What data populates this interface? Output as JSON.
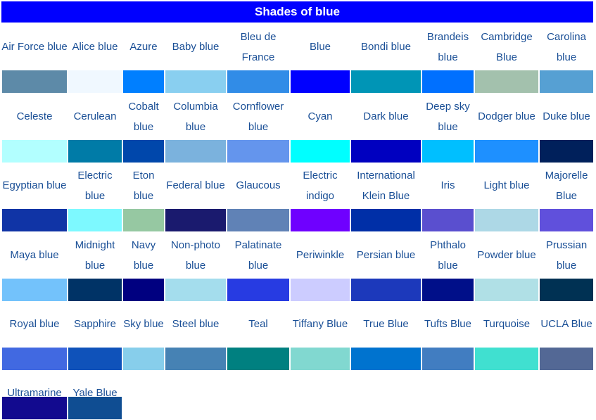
{
  "title": "Shades of blue",
  "rows": [
    [
      {
        "name": "Air Force blue",
        "color": "#5D8AA8"
      },
      {
        "name": "Alice blue",
        "color": "#F0F8FF"
      },
      {
        "name": "Azure",
        "color": "#007FFF"
      },
      {
        "name": "Baby blue",
        "color": "#89CFF0"
      },
      {
        "name": "Bleu de France",
        "color": "#318CE7"
      },
      {
        "name": "Blue",
        "color": "#0000FF"
      },
      {
        "name": "Bondi blue",
        "color": "#0095B6"
      },
      {
        "name": "Brandeis blue",
        "color": "#0070FF"
      },
      {
        "name": "Cambridge Blue",
        "color": "#A3C1AD"
      },
      {
        "name": "Carolina blue",
        "color": "#56A0D3"
      }
    ],
    [
      {
        "name": "Celeste",
        "color": "#B2FFFF"
      },
      {
        "name": "Cerulean",
        "color": "#007BA7"
      },
      {
        "name": "Cobalt blue",
        "color": "#0047AB"
      },
      {
        "name": "Columbia blue",
        "color": "#7BB2DD"
      },
      {
        "name": "Cornflower blue",
        "color": "#6495ED"
      },
      {
        "name": "Cyan",
        "color": "#00FFFF"
      },
      {
        "name": "Dark blue",
        "color": "#0000C0"
      },
      {
        "name": "Deep sky blue",
        "color": "#00BFFF"
      },
      {
        "name": "Dodger blue",
        "color": "#1E90FF"
      },
      {
        "name": "Duke blue",
        "color": "#00205B"
      }
    ],
    [
      {
        "name": "Egyptian blue",
        "color": "#1034A6"
      },
      {
        "name": "Electric blue",
        "color": "#7DF9FF"
      },
      {
        "name": "Eton blue",
        "color": "#96C8A2"
      },
      {
        "name": "Federal blue",
        "color": "#1A1A6E"
      },
      {
        "name": "Glaucous",
        "color": "#6082B6"
      },
      {
        "name": "Electric indigo",
        "color": "#6F00FF"
      },
      {
        "name": "International Klein Blue",
        "color": "#002FA7"
      },
      {
        "name": "Iris",
        "color": "#5A4FCF"
      },
      {
        "name": "Light blue",
        "color": "#ADD8E6"
      },
      {
        "name": "Majorelle Blue",
        "color": "#6050DC"
      }
    ],
    [
      {
        "name": "Maya blue",
        "color": "#73C2FB"
      },
      {
        "name": "Midnight blue",
        "color": "#003366"
      },
      {
        "name": "Navy blue",
        "color": "#000080"
      },
      {
        "name": "Non-photo blue",
        "color": "#A4DDED"
      },
      {
        "name": "Palatinate blue",
        "color": "#273BE2"
      },
      {
        "name": "Periwinkle",
        "color": "#CCCCFF"
      },
      {
        "name": "Persian blue",
        "color": "#1C39BB"
      },
      {
        "name": "Phthalo blue",
        "color": "#000F89"
      },
      {
        "name": "Powder blue",
        "color": "#B0E0E6"
      },
      {
        "name": "Prussian blue",
        "color": "#003153"
      }
    ],
    [
      {
        "name": "Royal blue",
        "color": "#4169E1"
      },
      {
        "name": "Sapphire",
        "color": "#0F52BA"
      },
      {
        "name": "Sky blue",
        "color": "#87CEEB"
      },
      {
        "name": "Steel blue",
        "color": "#4682B4"
      },
      {
        "name": "Teal",
        "color": "#008080"
      },
      {
        "name": "Tiffany Blue",
        "color": "#81D8D0"
      },
      {
        "name": "True Blue",
        "color": "#0073CF"
      },
      {
        "name": "Tufts Blue",
        "color": "#417DC1"
      },
      {
        "name": "Turquoise",
        "color": "#40E0D0"
      },
      {
        "name": "UCLA Blue",
        "color": "#536895"
      }
    ],
    [
      {
        "name": "Ultramarine",
        "color": "#120A8F"
      },
      {
        "name": "Yale Blue",
        "color": "#0F4D92"
      }
    ]
  ]
}
